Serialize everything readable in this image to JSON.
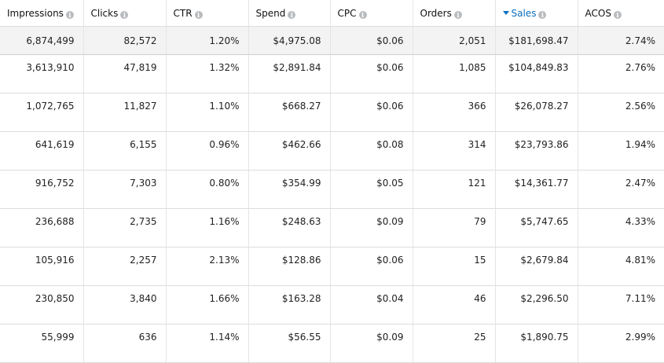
{
  "columns": [
    {
      "label": "Impressions",
      "icon": "info-icon"
    },
    {
      "label": "Clicks",
      "icon": "info-icon"
    },
    {
      "label": "CTR",
      "icon": "info-icon"
    },
    {
      "label": "Spend",
      "icon": "info-icon"
    },
    {
      "label": "CPC",
      "icon": "info-icon"
    },
    {
      "label": "Orders",
      "icon": "info-icon"
    },
    {
      "label": "Sales",
      "icon": "info-icon",
      "sorted": "descending",
      "sort_icon": "sort-descending-icon"
    },
    {
      "label": "ACOS",
      "icon": "info-icon"
    }
  ],
  "totals": [
    "6,874,499",
    "82,572",
    "1.20%",
    "$4,975.08",
    "$0.06",
    "2,051",
    "$181,698.47",
    "2.74%"
  ],
  "rows": [
    [
      "3,613,910",
      "47,819",
      "1.32%",
      "$2,891.84",
      "$0.06",
      "1,085",
      "$104,849.83",
      "2.76%"
    ],
    [
      "1,072,765",
      "11,827",
      "1.10%",
      "$668.27",
      "$0.06",
      "366",
      "$26,078.27",
      "2.56%"
    ],
    [
      "641,619",
      "6,155",
      "0.96%",
      "$462.66",
      "$0.08",
      "314",
      "$23,793.86",
      "1.94%"
    ],
    [
      "916,752",
      "7,303",
      "0.80%",
      "$354.99",
      "$0.05",
      "121",
      "$14,361.77",
      "2.47%"
    ],
    [
      "236,688",
      "2,735",
      "1.16%",
      "$248.63",
      "$0.09",
      "79",
      "$5,747.65",
      "4.33%"
    ],
    [
      "105,916",
      "2,257",
      "2.13%",
      "$128.86",
      "$0.06",
      "15",
      "$2,679.84",
      "4.81%"
    ],
    [
      "230,850",
      "3,840",
      "1.66%",
      "$163.28",
      "$0.04",
      "46",
      "$2,296.50",
      "7.11%"
    ],
    [
      "55,999",
      "636",
      "1.14%",
      "$56.55",
      "$0.09",
      "25",
      "$1,890.75",
      "2.99%"
    ]
  ],
  "colors": {
    "accent": "#0a6ebd",
    "info_icon": "#b9bcbf",
    "totals_background": "#f3f3f3",
    "grid_line": "#dddddd"
  }
}
